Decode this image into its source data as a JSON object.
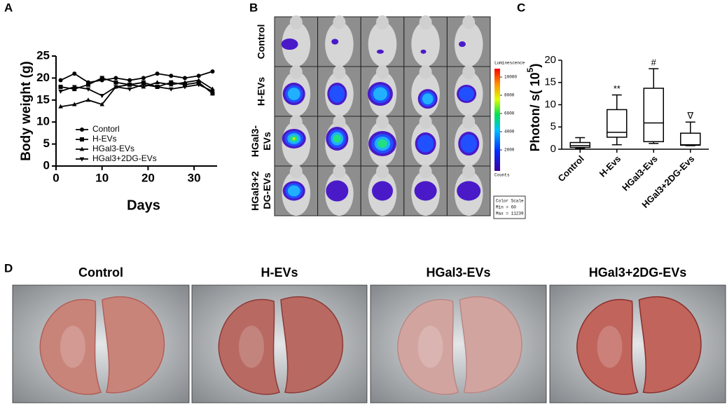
{
  "panel_labels": [
    "A",
    "B",
    "C",
    "D"
  ],
  "chart_data": [
    {
      "type": "line",
      "ylabel": "Body weight (g)",
      "xlabel": "Days",
      "xlim": [
        0,
        35
      ],
      "xticks": [
        0,
        10,
        20,
        30
      ],
      "ylim": [
        0,
        25
      ],
      "yticks": [
        0,
        5,
        10,
        15,
        20,
        25
      ],
      "x": [
        1,
        4,
        7,
        10,
        13,
        16,
        19,
        22,
        25,
        28,
        31,
        34
      ],
      "series": [
        {
          "name": "Contorl",
          "color": "#000000",
          "marker": "circle",
          "values": [
            19.5,
            21,
            19,
            19.5,
            20,
            19.5,
            20,
            21,
            20.5,
            20,
            20.5,
            21.5
          ]
        },
        {
          "name": "H-EVs",
          "color": "#000000",
          "marker": "square",
          "values": [
            18,
            17.5,
            18.5,
            20,
            19,
            18.5,
            19,
            18,
            19,
            18.5,
            19,
            16.5
          ]
        },
        {
          "name": "HGal3-EVs",
          "color": "#000000",
          "marker": "triangle",
          "values": [
            13.5,
            14,
            15,
            14,
            18,
            18.5,
            18,
            19,
            18.5,
            19,
            19.5,
            17.5
          ]
        },
        {
          "name": "HGal3+2DG-EVs",
          "color": "#000000",
          "marker": "triangle-down",
          "values": [
            17,
            18,
            17.5,
            16,
            18,
            17.5,
            18.5,
            18,
            17.5,
            18,
            18.5,
            17
          ]
        }
      ]
    },
    {
      "type": "box",
      "ylabel": "Photon/ s( 10",
      "ylabel_sup": "5",
      "ylabel_end": ")",
      "ylim": [
        0,
        20
      ],
      "yticks": [
        0,
        5,
        10,
        15,
        20
      ],
      "categories": [
        "Control",
        "H-Evs",
        "HGal3-Evs",
        "HGal3+2DG-Evs"
      ],
      "boxes": [
        {
          "min": 0.2,
          "q1": 0.4,
          "median": 0.8,
          "q3": 1.5,
          "max": 2.6
        },
        {
          "min": 1.0,
          "q1": 2.7,
          "median": 3.8,
          "q3": 8.9,
          "max": 12.2
        },
        {
          "min": 1.3,
          "q1": 1.7,
          "median": 5.9,
          "q3": 13.7,
          "max": 18.1
        },
        {
          "min": 0.8,
          "q1": 0.9,
          "median": 1.0,
          "q3": 3.6,
          "max": 6.1
        }
      ],
      "annotations": [
        null,
        "**",
        "#",
        "∇"
      ]
    }
  ],
  "imaging": {
    "rows": [
      [
        "Control"
      ],
      [
        "H-EVs"
      ],
      [
        "HGal3-",
        "EVs"
      ],
      [
        "HGal3+2",
        "DG-EVs"
      ]
    ],
    "colorbar_title": "Luminescence",
    "colorbar_ticks": [
      "10000",
      "8000",
      "6000",
      "4000",
      "2000"
    ],
    "colorbar_unit": "Counts",
    "color_scale": [
      "Color Scale",
      "Min = 60",
      "Max = 11239"
    ]
  },
  "photos": {
    "titles": [
      "Control",
      "H-EVs",
      "HGal3-EVs",
      "HGal3+2DG-EVs"
    ]
  }
}
